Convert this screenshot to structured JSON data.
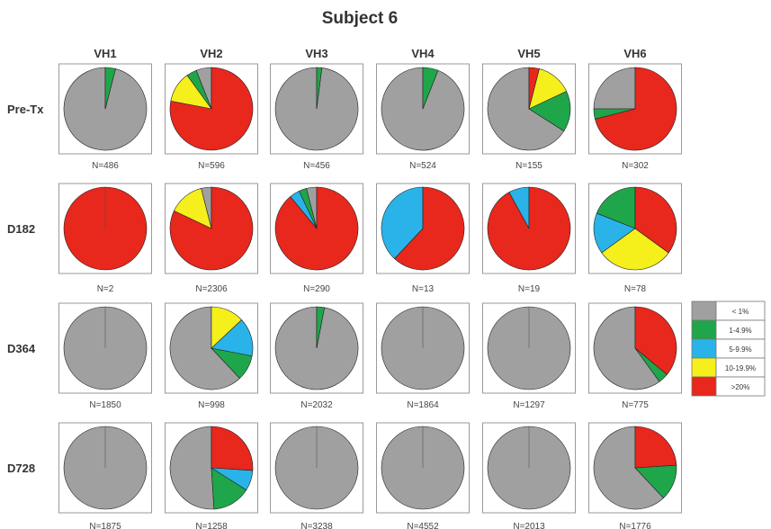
{
  "chart_data": {
    "type": "pie",
    "title": "Subject 6",
    "columns": [
      "VH1",
      "VH2",
      "VH3",
      "VH4",
      "VH5",
      "VH6"
    ],
    "rows": [
      "Pre-Tx",
      "D182",
      "D364",
      "D728"
    ],
    "categories": [
      "< 1%",
      "1-4.9%",
      "5-9.9%",
      "10-19.9%",
      ">20%"
    ],
    "colors": {
      "< 1%": "#a0a0a0",
      "1-4.9%": "#1fa64a",
      "5-9.9%": "#2ab3e8",
      "10-19.9%": "#f5ef1c",
      ">20%": "#e8271d"
    },
    "cells": [
      [
        {
          "n": "N=486",
          "slices": [
            0.96,
            0.04,
            0,
            0,
            0
          ]
        },
        {
          "n": "N=596",
          "slices": [
            0.06,
            0.04,
            0,
            0.12,
            0.78
          ]
        },
        {
          "n": "N=456",
          "slices": [
            0.98,
            0.02,
            0,
            0,
            0
          ]
        },
        {
          "n": "N=524",
          "slices": [
            0.94,
            0.06,
            0,
            0,
            0
          ]
        },
        {
          "n": "N=155",
          "slices": [
            0.66,
            0.16,
            0,
            0.14,
            0.04
          ]
        },
        {
          "n": "N=302",
          "slices": [
            0.25,
            0.04,
            0,
            0,
            0.71
          ]
        }
      ],
      [
        {
          "n": "N=2",
          "slices": [
            0,
            0,
            0,
            0,
            1.0
          ]
        },
        {
          "n": "N=2306",
          "slices": [
            0.04,
            0,
            0,
            0.14,
            0.82
          ]
        },
        {
          "n": "N=290",
          "slices": [
            0.04,
            0.03,
            0.04,
            0,
            0.89
          ]
        },
        {
          "n": "N=13",
          "slices": [
            0,
            0,
            0.38,
            0,
            0.62
          ]
        },
        {
          "n": "N=19",
          "slices": [
            0,
            0,
            0.08,
            0,
            0.92
          ]
        },
        {
          "n": "N=78",
          "slices": [
            0,
            0.19,
            0.16,
            0.3,
            0.35
          ]
        }
      ],
      [
        {
          "n": "N=1850",
          "slices": [
            1.0,
            0,
            0,
            0,
            0
          ]
        },
        {
          "n": "N=998",
          "slices": [
            0.62,
            0.1,
            0.15,
            0.13,
            0
          ]
        },
        {
          "n": "N=2032",
          "slices": [
            0.97,
            0.03,
            0,
            0,
            0
          ]
        },
        {
          "n": "N=1864",
          "slices": [
            1.0,
            0,
            0,
            0,
            0
          ]
        },
        {
          "n": "N=1297",
          "slices": [
            1.0,
            0,
            0,
            0,
            0
          ]
        },
        {
          "n": "N=775",
          "slices": [
            0.6,
            0.04,
            0,
            0,
            0.36
          ]
        }
      ],
      [
        {
          "n": "N=1875",
          "slices": [
            1.0,
            0,
            0,
            0,
            0
          ]
        },
        {
          "n": "N=1258",
          "slices": [
            0.51,
            0.15,
            0.08,
            0,
            0.26
          ]
        },
        {
          "n": "N=3238",
          "slices": [
            1.0,
            0,
            0,
            0,
            0
          ]
        },
        {
          "n": "N=4552",
          "slices": [
            1.0,
            0,
            0,
            0,
            0
          ]
        },
        {
          "n": "N=2013",
          "slices": [
            1.0,
            0,
            0,
            0,
            0
          ]
        },
        {
          "n": "N=1776",
          "slices": [
            0.62,
            0.14,
            0,
            0,
            0.24
          ]
        }
      ]
    ],
    "legend_position": "right"
  }
}
